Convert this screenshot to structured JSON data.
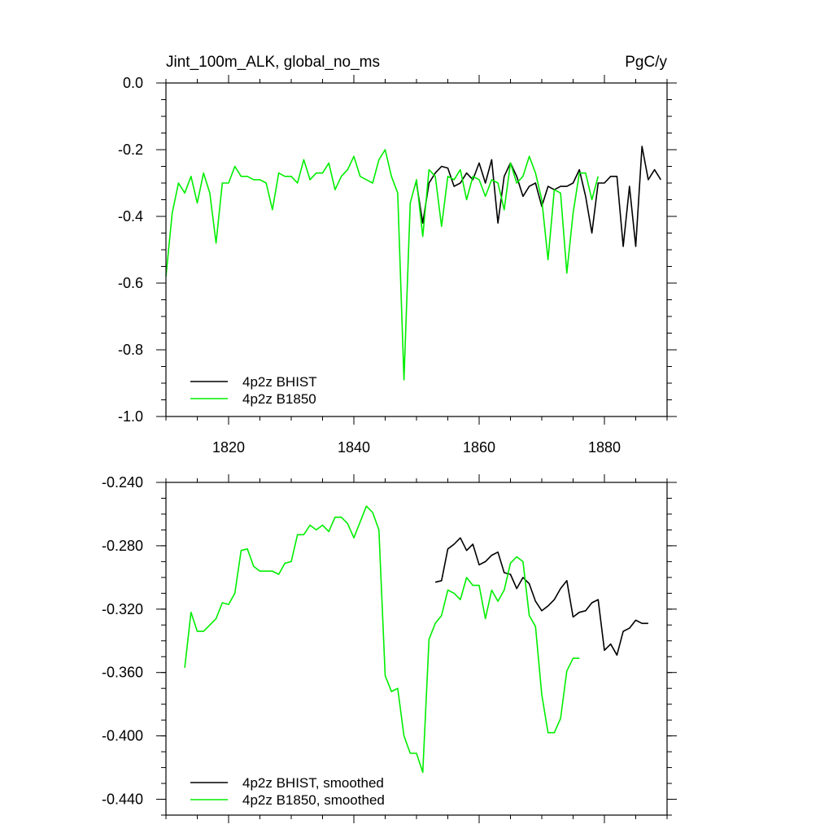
{
  "colors": {
    "bhist": "#000000",
    "b1850": "#00ee00",
    "axis": "#000000"
  },
  "chart_data": [
    {
      "type": "line",
      "title": "Jint_100m_ALK, global_no_ms",
      "units": "PgC/y",
      "xlim": [
        1810,
        1890
      ],
      "ylim": [
        -1.0,
        0.0
      ],
      "xticks": [
        1820,
        1840,
        1860,
        1880
      ],
      "yticks": [
        -1.0,
        -0.8,
        -0.6,
        -0.4,
        -0.2,
        0.0
      ],
      "ytick_labels": [
        "-1.0",
        "-0.8",
        "-0.6",
        "-0.4",
        "-0.2",
        "0.0"
      ],
      "xtick_labels": [
        "1820",
        "1840",
        "1860",
        "1880"
      ],
      "legend": "bottom-left",
      "series": [
        {
          "name": "4p2z BHIST",
          "color": "#000000",
          "x": [
            1850,
            1851,
            1852,
            1853,
            1854,
            1855,
            1856,
            1857,
            1858,
            1859,
            1860,
            1861,
            1862,
            1863,
            1864,
            1865,
            1866,
            1867,
            1868,
            1869,
            1870,
            1871,
            1872,
            1873,
            1874,
            1875,
            1876,
            1877,
            1878,
            1879,
            1880,
            1881,
            1882,
            1883,
            1884,
            1885,
            1886,
            1887,
            1888,
            1889
          ],
          "y": [
            -0.3,
            -0.42,
            -0.3,
            -0.27,
            -0.25,
            -0.255,
            -0.31,
            -0.3,
            -0.27,
            -0.29,
            -0.24,
            -0.3,
            -0.23,
            -0.42,
            -0.28,
            -0.24,
            -0.28,
            -0.34,
            -0.31,
            -0.3,
            -0.37,
            -0.31,
            -0.32,
            -0.31,
            -0.31,
            -0.3,
            -0.26,
            -0.34,
            -0.45,
            -0.3,
            -0.3,
            -0.28,
            -0.28,
            -0.49,
            -0.31,
            -0.49,
            -0.19,
            -0.29,
            -0.26,
            -0.29
          ]
        },
        {
          "name": "4p2z B1850",
          "color": "#00ee00",
          "x": [
            1810,
            1811,
            1812,
            1813,
            1814,
            1815,
            1816,
            1817,
            1818,
            1819,
            1820,
            1821,
            1822,
            1823,
            1824,
            1825,
            1826,
            1827,
            1828,
            1829,
            1830,
            1831,
            1832,
            1833,
            1834,
            1835,
            1836,
            1837,
            1838,
            1839,
            1840,
            1841,
            1842,
            1843,
            1844,
            1845,
            1846,
            1847,
            1848,
            1849,
            1850,
            1851,
            1852,
            1853,
            1854,
            1855,
            1856,
            1857,
            1858,
            1859,
            1860,
            1861,
            1862,
            1863,
            1864,
            1865,
            1866,
            1867,
            1868,
            1869,
            1870,
            1871,
            1872,
            1873,
            1874,
            1875,
            1876,
            1877,
            1878,
            1879
          ],
          "y": [
            -0.58,
            -0.39,
            -0.3,
            -0.33,
            -0.28,
            -0.36,
            -0.27,
            -0.33,
            -0.48,
            -0.3,
            -0.3,
            -0.25,
            -0.28,
            -0.28,
            -0.29,
            -0.29,
            -0.3,
            -0.38,
            -0.27,
            -0.28,
            -0.28,
            -0.3,
            -0.23,
            -0.29,
            -0.27,
            -0.27,
            -0.24,
            -0.32,
            -0.28,
            -0.26,
            -0.22,
            -0.28,
            -0.29,
            -0.3,
            -0.23,
            -0.2,
            -0.28,
            -0.33,
            -0.89,
            -0.36,
            -0.29,
            -0.46,
            -0.26,
            -0.28,
            -0.43,
            -0.28,
            -0.29,
            -0.26,
            -0.35,
            -0.28,
            -0.29,
            -0.34,
            -0.29,
            -0.3,
            -0.38,
            -0.24,
            -0.3,
            -0.28,
            -0.22,
            -0.27,
            -0.35,
            -0.53,
            -0.32,
            -0.33,
            -0.57,
            -0.39,
            -0.27,
            -0.27,
            -0.35,
            -0.28
          ]
        }
      ]
    },
    {
      "type": "line",
      "xlim": [
        1810,
        1890
      ],
      "ylim": [
        -0.45,
        -0.24
      ],
      "yticks": [
        -0.44,
        -0.4,
        -0.36,
        -0.32,
        -0.28,
        -0.24
      ],
      "ytick_labels": [
        "-0.440",
        "-0.400",
        "-0.360",
        "-0.320",
        "-0.280",
        "-0.240"
      ],
      "legend": "bottom-left",
      "series": [
        {
          "name": "4p2z BHIST, smoothed",
          "color": "#000000",
          "x": [
            1853,
            1854,
            1855,
            1856,
            1857,
            1858,
            1859,
            1860,
            1861,
            1862,
            1863,
            1864,
            1865,
            1866,
            1867,
            1868,
            1869,
            1870,
            1871,
            1872,
            1873,
            1874,
            1875,
            1876,
            1877,
            1878,
            1879,
            1880,
            1881,
            1882,
            1883,
            1884,
            1885,
            1886,
            1887
          ],
          "y": [
            -0.303,
            -0.302,
            -0.282,
            -0.279,
            -0.275,
            -0.283,
            -0.279,
            -0.292,
            -0.29,
            -0.286,
            -0.284,
            -0.297,
            -0.298,
            -0.307,
            -0.3,
            -0.304,
            -0.315,
            -0.321,
            -0.318,
            -0.314,
            -0.307,
            -0.302,
            -0.325,
            -0.322,
            -0.321,
            -0.316,
            -0.314,
            -0.346,
            -0.342,
            -0.349,
            -0.334,
            -0.332,
            -0.327,
            -0.329,
            -0.329
          ]
        },
        {
          "name": "4p2z B1850, smoothed",
          "color": "#00ee00",
          "x": [
            1813,
            1814,
            1815,
            1816,
            1817,
            1818,
            1819,
            1820,
            1821,
            1822,
            1823,
            1824,
            1825,
            1826,
            1827,
            1828,
            1829,
            1830,
            1831,
            1832,
            1833,
            1834,
            1835,
            1836,
            1837,
            1838,
            1839,
            1840,
            1841,
            1842,
            1843,
            1844,
            1845,
            1846,
            1847,
            1848,
            1849,
            1850,
            1851,
            1852,
            1853,
            1854,
            1855,
            1856,
            1857,
            1858,
            1859,
            1860,
            1861,
            1862,
            1863,
            1864,
            1865,
            1866,
            1867,
            1868,
            1869,
            1870,
            1871,
            1872,
            1873,
            1874,
            1875,
            1876
          ],
          "y": [
            -0.357,
            -0.322,
            -0.334,
            -0.334,
            -0.33,
            -0.326,
            -0.316,
            -0.317,
            -0.31,
            -0.283,
            -0.282,
            -0.293,
            -0.296,
            -0.296,
            -0.296,
            -0.298,
            -0.291,
            -0.29,
            -0.273,
            -0.273,
            -0.267,
            -0.27,
            -0.267,
            -0.271,
            -0.262,
            -0.262,
            -0.266,
            -0.275,
            -0.265,
            -0.255,
            -0.259,
            -0.27,
            -0.362,
            -0.372,
            -0.37,
            -0.4,
            -0.411,
            -0.411,
            -0.423,
            -0.339,
            -0.329,
            -0.324,
            -0.308,
            -0.31,
            -0.314,
            -0.3,
            -0.305,
            -0.305,
            -0.326,
            -0.308,
            -0.315,
            -0.308,
            -0.291,
            -0.287,
            -0.29,
            -0.324,
            -0.331,
            -0.374,
            -0.398,
            -0.398,
            -0.389,
            -0.359,
            -0.351,
            -0.351
          ]
        }
      ]
    }
  ]
}
